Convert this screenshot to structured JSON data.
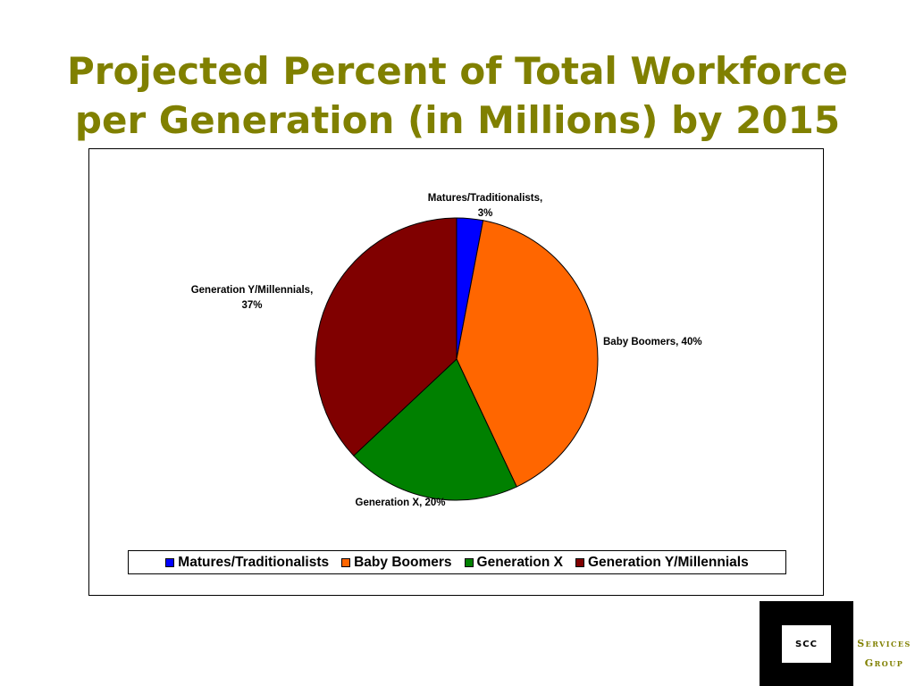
{
  "slide": {
    "title_line1": "Projected Percent of Total Workforce",
    "title_line2": "per Generation (in Millions) by 2015"
  },
  "chart_data": {
    "type": "pie",
    "title": "",
    "slices": [
      {
        "name": "Matures/Traditionalists",
        "value": 3,
        "label_line1": "Matures/Traditionalists,",
        "label_line2": "3%",
        "color": "#0000FF"
      },
      {
        "name": "Baby Boomers",
        "value": 40,
        "label_line1": "Baby Boomers, 40%",
        "label_line2": "",
        "color": "#FF6600"
      },
      {
        "name": "Generation X",
        "value": 20,
        "label_line1": "Generation X, 20%",
        "label_line2": "",
        "color": "#008000"
      },
      {
        "name": "Generation Y/Millennials",
        "value": 37,
        "label_line1": "Generation Y/Millennials,",
        "label_line2": "37%",
        "color": "#800000"
      }
    ],
    "legend": {
      "placement": "bottom",
      "entries": [
        "Matures/Traditionalists",
        "Baby Boomers",
        "Generation X",
        "Generation Y/Millennials"
      ]
    }
  },
  "logo": {
    "mark": "SCC",
    "line1": "Services",
    "line2": "Group",
    "color": "#808000"
  }
}
